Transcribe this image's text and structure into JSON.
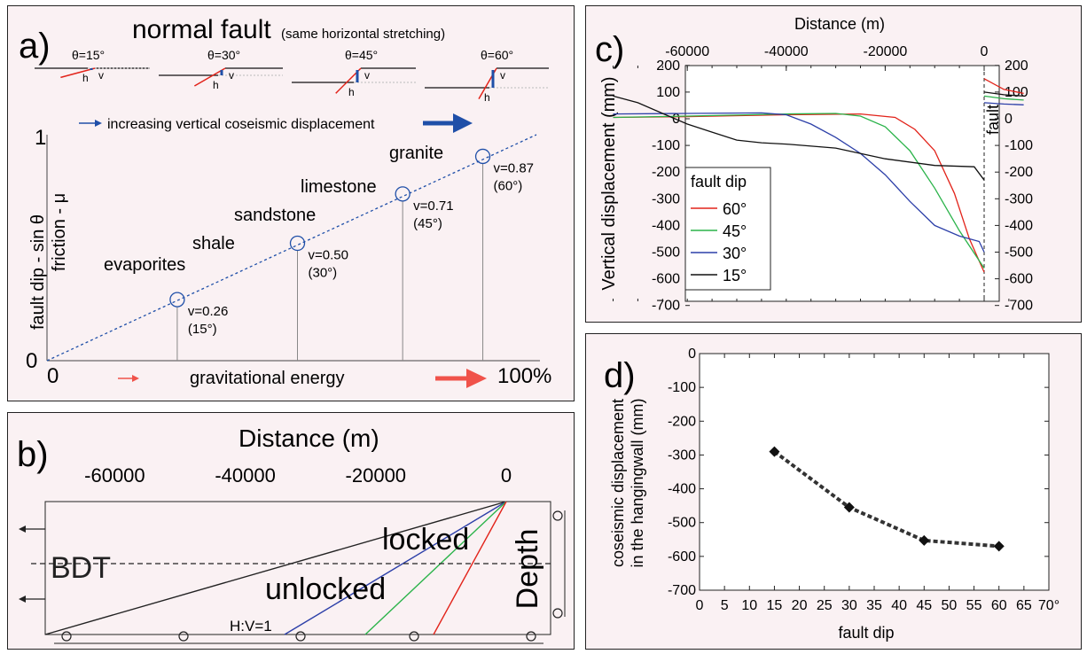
{
  "panel_a": {
    "letter": "a)",
    "title": "normal fault",
    "subtitle": "(same horizontal stretching)",
    "sketch_labels": [
      "θ=15°",
      "θ=30°",
      "θ=45°",
      "θ=60°"
    ],
    "sketch_h": "h",
    "sketch_v": "v",
    "arrow_top_label": "increasing vertical coseismic displacement",
    "arrow_bottom_label": "gravitational energy",
    "y_label_1": "fault dip - sin θ",
    "y_label_2": "friction - μ",
    "y_top_tick": "1",
    "y_bottom_tick": "0",
    "x_left_tick": "0",
    "x_right_tick": "100%",
    "accent_blue": "#1f4fa8",
    "accent_red": "#f0524a",
    "rocks": [
      "evaporites",
      "shale",
      "sandstone",
      "limestone",
      "granite"
    ],
    "points": [
      {
        "v_label": "v=0.26",
        "angle_label": "(15°)"
      },
      {
        "v_label": "v=0.50",
        "angle_label": "(30°)"
      },
      {
        "v_label": "v=0.71",
        "angle_label": "(45°)"
      },
      {
        "v_label": "v=0.87",
        "angle_label": "(60°)"
      }
    ]
  },
  "panel_b": {
    "letter": "b)",
    "title": "Distance (m)",
    "ticks": [
      "-60000",
      "-40000",
      "-20000",
      "0"
    ],
    "labels": {
      "bdt": "BDT",
      "locked": "locked",
      "unlocked": "unlocked",
      "hv": "H:V=1",
      "depth": "Depth"
    },
    "fault_colors": [
      "#222222",
      "#2c3fa8",
      "#2bb34a",
      "#e2231a"
    ]
  },
  "panel_c": {
    "letter": "c)",
    "title": "Distance (m)",
    "ylabel": "Vertical displacement (mm)",
    "fault_label": "fault",
    "legend_title": "fault dip",
    "x_ticks": [
      "-60000",
      "-40000",
      "-20000",
      "0"
    ],
    "y_ticks": [
      "200",
      "100",
      "0",
      "-100",
      "-200",
      "-300",
      "-400",
      "-500",
      "-600",
      "-700"
    ]
  },
  "panel_d": {
    "letter": "d)",
    "xlabel": "fault dip",
    "ylabel_1": "coseismic displacement",
    "ylabel_2": "in the hangingwall (mm)",
    "x_ticks": [
      "0",
      "5",
      "10",
      "15",
      "20",
      "25",
      "30",
      "35",
      "40",
      "45",
      "50",
      "55",
      "60",
      "65",
      "70°"
    ],
    "y_ticks": [
      "0",
      "-100",
      "-200",
      "-300",
      "-400",
      "-500",
      "-600",
      "-700"
    ]
  },
  "chart_data": [
    {
      "type": "line",
      "panel": "c",
      "xlabel": "Distance (m)",
      "ylabel": "Vertical displacement (mm)",
      "xlim": [
        -75000,
        8000
      ],
      "ylim": [
        -700,
        200
      ],
      "legend": "lower-left",
      "series": [
        {
          "name": "60°",
          "color": "#e2231a",
          "x": [
            -75000,
            -60000,
            -40000,
            -25000,
            -18000,
            -14000,
            -10000,
            -6000,
            -3000,
            0
          ],
          "y": [
            5,
            8,
            15,
            18,
            5,
            -40,
            -120,
            -280,
            -450,
            -575
          ],
          "x_right": [
            0,
            4000,
            8000
          ],
          "y_right": [
            150,
            110,
            95
          ]
        },
        {
          "name": "45°",
          "color": "#2bb34a",
          "x": [
            -75000,
            -60000,
            -40000,
            -30000,
            -25000,
            -20000,
            -15000,
            -10000,
            -5000,
            0
          ],
          "y": [
            5,
            10,
            18,
            20,
            10,
            -30,
            -120,
            -260,
            -420,
            -560
          ],
          "x_right": [
            0,
            4000,
            8000
          ],
          "y_right": [
            85,
            75,
            70
          ]
        },
        {
          "name": "30°",
          "color": "#2c3fa8",
          "x": [
            -75000,
            -60000,
            -45000,
            -40000,
            -35000,
            -30000,
            -25000,
            -20000,
            -15000,
            -10000,
            -5000,
            -1000,
            0
          ],
          "y": [
            18,
            20,
            22,
            15,
            -20,
            -70,
            -130,
            -210,
            -310,
            -400,
            -440,
            -460,
            -500
          ],
          "x_right": [
            0,
            4000,
            8000
          ],
          "y_right": [
            60,
            55,
            52
          ]
        },
        {
          "name": "15°",
          "color": "#111111",
          "x": [
            -75000,
            -70000,
            -65000,
            -60000,
            -55000,
            -50000,
            -45000,
            -40000,
            -30000,
            -20000,
            -10000,
            -2000,
            0
          ],
          "y": [
            85,
            60,
            20,
            -20,
            -50,
            -80,
            -90,
            -95,
            -110,
            -150,
            -175,
            -180,
            -230
          ],
          "x_right": [
            0,
            4000,
            8000
          ],
          "y_right": [
            100,
            90,
            85
          ]
        }
      ]
    },
    {
      "type": "line",
      "panel": "d",
      "xlabel": "fault dip",
      "ylabel": "coseismic displacement in the hangingwall (mm)",
      "xlim": [
        0,
        70
      ],
      "ylim": [
        -700,
        0
      ],
      "x": [
        15,
        30,
        45,
        60
      ],
      "y": [
        -290,
        -455,
        -553,
        -570
      ]
    },
    {
      "type": "scatter",
      "panel": "a",
      "xlim": [
        0,
        1
      ],
      "ylim": [
        0,
        1
      ],
      "x": [
        0.26,
        0.5,
        0.71,
        0.87
      ],
      "y": [
        0.26,
        0.5,
        0.71,
        0.87
      ]
    }
  ]
}
